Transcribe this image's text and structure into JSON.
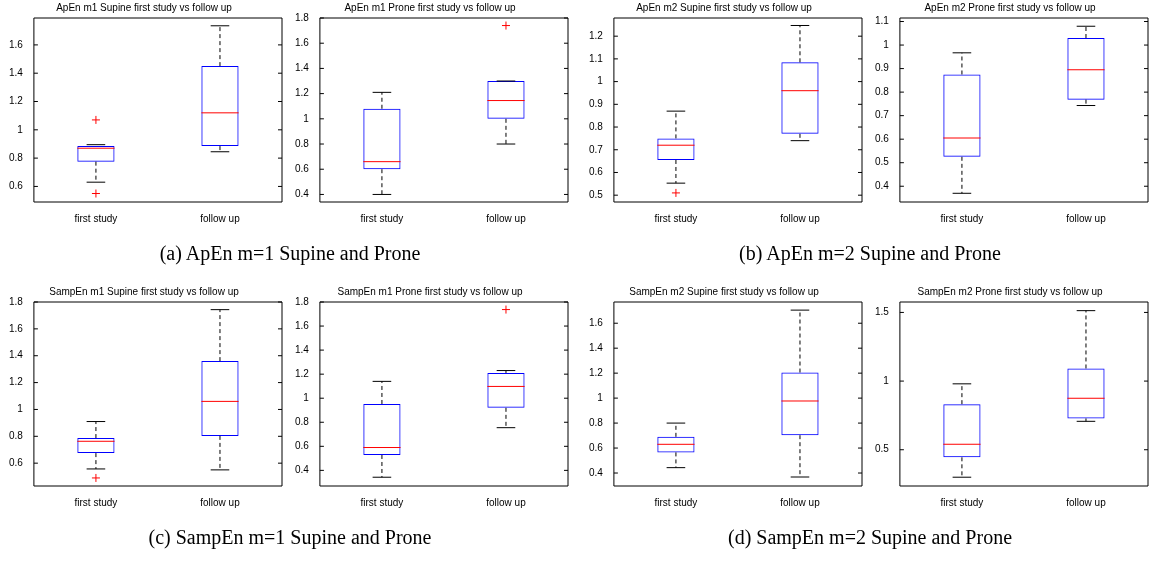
{
  "chart_data": [
    {
      "type": "box",
      "title": "ApEn m1 Supine first study vs follow up",
      "categories": [
        "first study",
        "follow up"
      ],
      "ylim": [
        0.49,
        1.79
      ],
      "yticks": [
        0.6,
        0.8,
        1,
        1.2,
        1.4,
        1.6
      ],
      "series": [
        {
          "color": "#0000ff",
          "boxes": [
            {
              "low": 0.63,
              "q1": 0.775,
              "median": 0.87,
              "q3": 0.885,
              "high": 0.895,
              "outliers": [
                1.07,
                0.55
              ]
            },
            {
              "low": 0.845,
              "q1": 0.885,
              "median": 1.12,
              "q3": 1.45,
              "high": 1.735
            }
          ]
        }
      ],
      "annotations": [
        "(a) ApEn m=1 Supine and Prone"
      ]
    },
    {
      "type": "box",
      "title": "ApEn m1 Prone first study vs follow up",
      "categories": [
        "first study",
        "follow up"
      ],
      "ylim": [
        0.34,
        1.8
      ],
      "yticks": [
        0.4,
        0.6,
        0.8,
        1,
        1.2,
        1.4,
        1.6,
        1.8
      ],
      "series": [
        {
          "color": "#0000ff",
          "boxes": [
            {
              "low": 0.4,
              "q1": 0.6,
              "median": 0.66,
              "q3": 1.08,
              "high": 1.21
            },
            {
              "low": 0.8,
              "q1": 1.0,
              "median": 1.145,
              "q3": 1.3,
              "high": 1.3,
              "outliers": [
                1.74
              ]
            }
          ]
        }
      ]
    },
    {
      "type": "box",
      "title": "ApEn m2 Supine first study vs follow up",
      "categories": [
        "first study",
        "follow up"
      ],
      "ylim": [
        0.47,
        1.28
      ],
      "yticks": [
        0.5,
        0.6,
        0.7,
        0.8,
        0.9,
        1,
        1.1,
        1.2
      ],
      "series": [
        {
          "color": "#0000ff",
          "boxes": [
            {
              "low": 0.553,
              "q1": 0.655,
              "median": 0.72,
              "q3": 0.75,
              "high": 0.87,
              "outliers": [
                0.51
              ]
            },
            {
              "low": 0.74,
              "q1": 0.77,
              "median": 0.96,
              "q3": 1.085,
              "high": 1.247
            }
          ]
        }
      ],
      "annotations": [
        "(b) ApEn m=2 Supine and Prone"
      ]
    },
    {
      "type": "box",
      "title": "ApEn m2 Prone first study vs follow up",
      "categories": [
        "first study",
        "follow up"
      ],
      "ylim": [
        0.333,
        1.115
      ],
      "yticks": [
        0.4,
        0.5,
        0.6,
        0.7,
        0.8,
        0.9,
        1,
        1.1
      ],
      "series": [
        {
          "color": "#0000ff",
          "boxes": [
            {
              "low": 0.37,
              "q1": 0.525,
              "median": 0.605,
              "q3": 0.875,
              "high": 0.967
            },
            {
              "low": 0.743,
              "q1": 0.768,
              "median": 0.895,
              "q3": 1.03,
              "high": 1.08
            }
          ]
        }
      ]
    },
    {
      "type": "box",
      "title": "SampEn m1 Supine first study vs follow up",
      "categories": [
        "first study",
        "follow up"
      ],
      "ylim": [
        0.43,
        1.8
      ],
      "yticks": [
        0.6,
        0.8,
        1,
        1.2,
        1.4,
        1.6,
        1.8
      ],
      "series": [
        {
          "color": "#0000ff",
          "boxes": [
            {
              "low": 0.557,
              "q1": 0.675,
              "median": 0.763,
              "q3": 0.787,
              "high": 0.91,
              "outliers": [
                0.49
              ]
            },
            {
              "low": 0.55,
              "q1": 0.803,
              "median": 1.06,
              "q3": 1.36,
              "high": 1.743
            }
          ]
        }
      ],
      "annotations": [
        "(c) SampEn m=1 Supine and Prone"
      ]
    },
    {
      "type": "box",
      "title": "SampEn m1 Prone first study vs follow up",
      "categories": [
        "first study",
        "follow up"
      ],
      "ylim": [
        0.27,
        1.8
      ],
      "yticks": [
        0.4,
        0.6,
        0.8,
        1,
        1.2,
        1.4,
        1.6,
        1.8
      ],
      "series": [
        {
          "color": "#0000ff",
          "boxes": [
            {
              "low": 0.343,
              "q1": 0.528,
              "median": 0.59,
              "q3": 0.952,
              "high": 1.14
            },
            {
              "low": 0.755,
              "q1": 0.92,
              "median": 1.098,
              "q3": 1.21,
              "high": 1.23,
              "outliers": [
                1.737
              ]
            }
          ]
        }
      ]
    },
    {
      "type": "box",
      "title": "SampEn m2 Supine first study vs follow up",
      "categories": [
        "first study",
        "follow up"
      ],
      "ylim": [
        0.296,
        1.77
      ],
      "yticks": [
        0.4,
        0.6,
        0.8,
        1,
        1.2,
        1.4,
        1.6
      ],
      "series": [
        {
          "color": "#0000ff",
          "boxes": [
            {
              "low": 0.443,
              "q1": 0.565,
              "median": 0.63,
              "q3": 0.69,
              "high": 0.8
            },
            {
              "low": 0.368,
              "q1": 0.703,
              "median": 0.977,
              "q3": 1.205,
              "high": 1.705
            }
          ]
        }
      ],
      "annotations": [
        "(d) SampEn m=2 Supine and Prone"
      ]
    },
    {
      "type": "box",
      "title": "SampEn m2 Prone first study vs follow up",
      "categories": [
        "first study",
        "follow up"
      ],
      "ylim": [
        0.236,
        1.576
      ],
      "yticks": [
        0.5,
        1,
        1.5
      ],
      "series": [
        {
          "color": "#0000ff",
          "boxes": [
            {
              "low": 0.3,
              "q1": 0.445,
              "median": 0.54,
              "q3": 0.832,
              "high": 0.98
            },
            {
              "low": 0.707,
              "q1": 0.728,
              "median": 0.875,
              "q3": 1.092,
              "high": 1.513
            }
          ]
        }
      ]
    }
  ]
}
